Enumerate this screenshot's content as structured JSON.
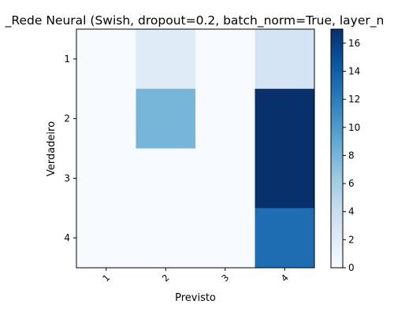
{
  "chart_data": {
    "type": "heatmap",
    "title": "_Rede Neural (Swish, dropout=0.2, batch_norm=True, layer_n",
    "xlabel": "Previsto",
    "ylabel": "Verdadeiro",
    "x_categories": [
      "1",
      "2",
      "3",
      "4"
    ],
    "y_categories": [
      "1",
      "2",
      "3",
      "4"
    ],
    "matrix": [
      [
        0,
        2,
        0,
        3
      ],
      [
        0,
        8,
        0,
        17
      ],
      [
        0,
        0,
        0,
        17
      ],
      [
        0,
        0,
        0,
        13
      ]
    ],
    "colorbar": {
      "min": 0,
      "max": 17,
      "ticks": [
        "0",
        "2",
        "4",
        "6",
        "8",
        "10",
        "12",
        "14",
        "16"
      ],
      "colormap": "Blues"
    },
    "grid": false,
    "legend": "none"
  }
}
